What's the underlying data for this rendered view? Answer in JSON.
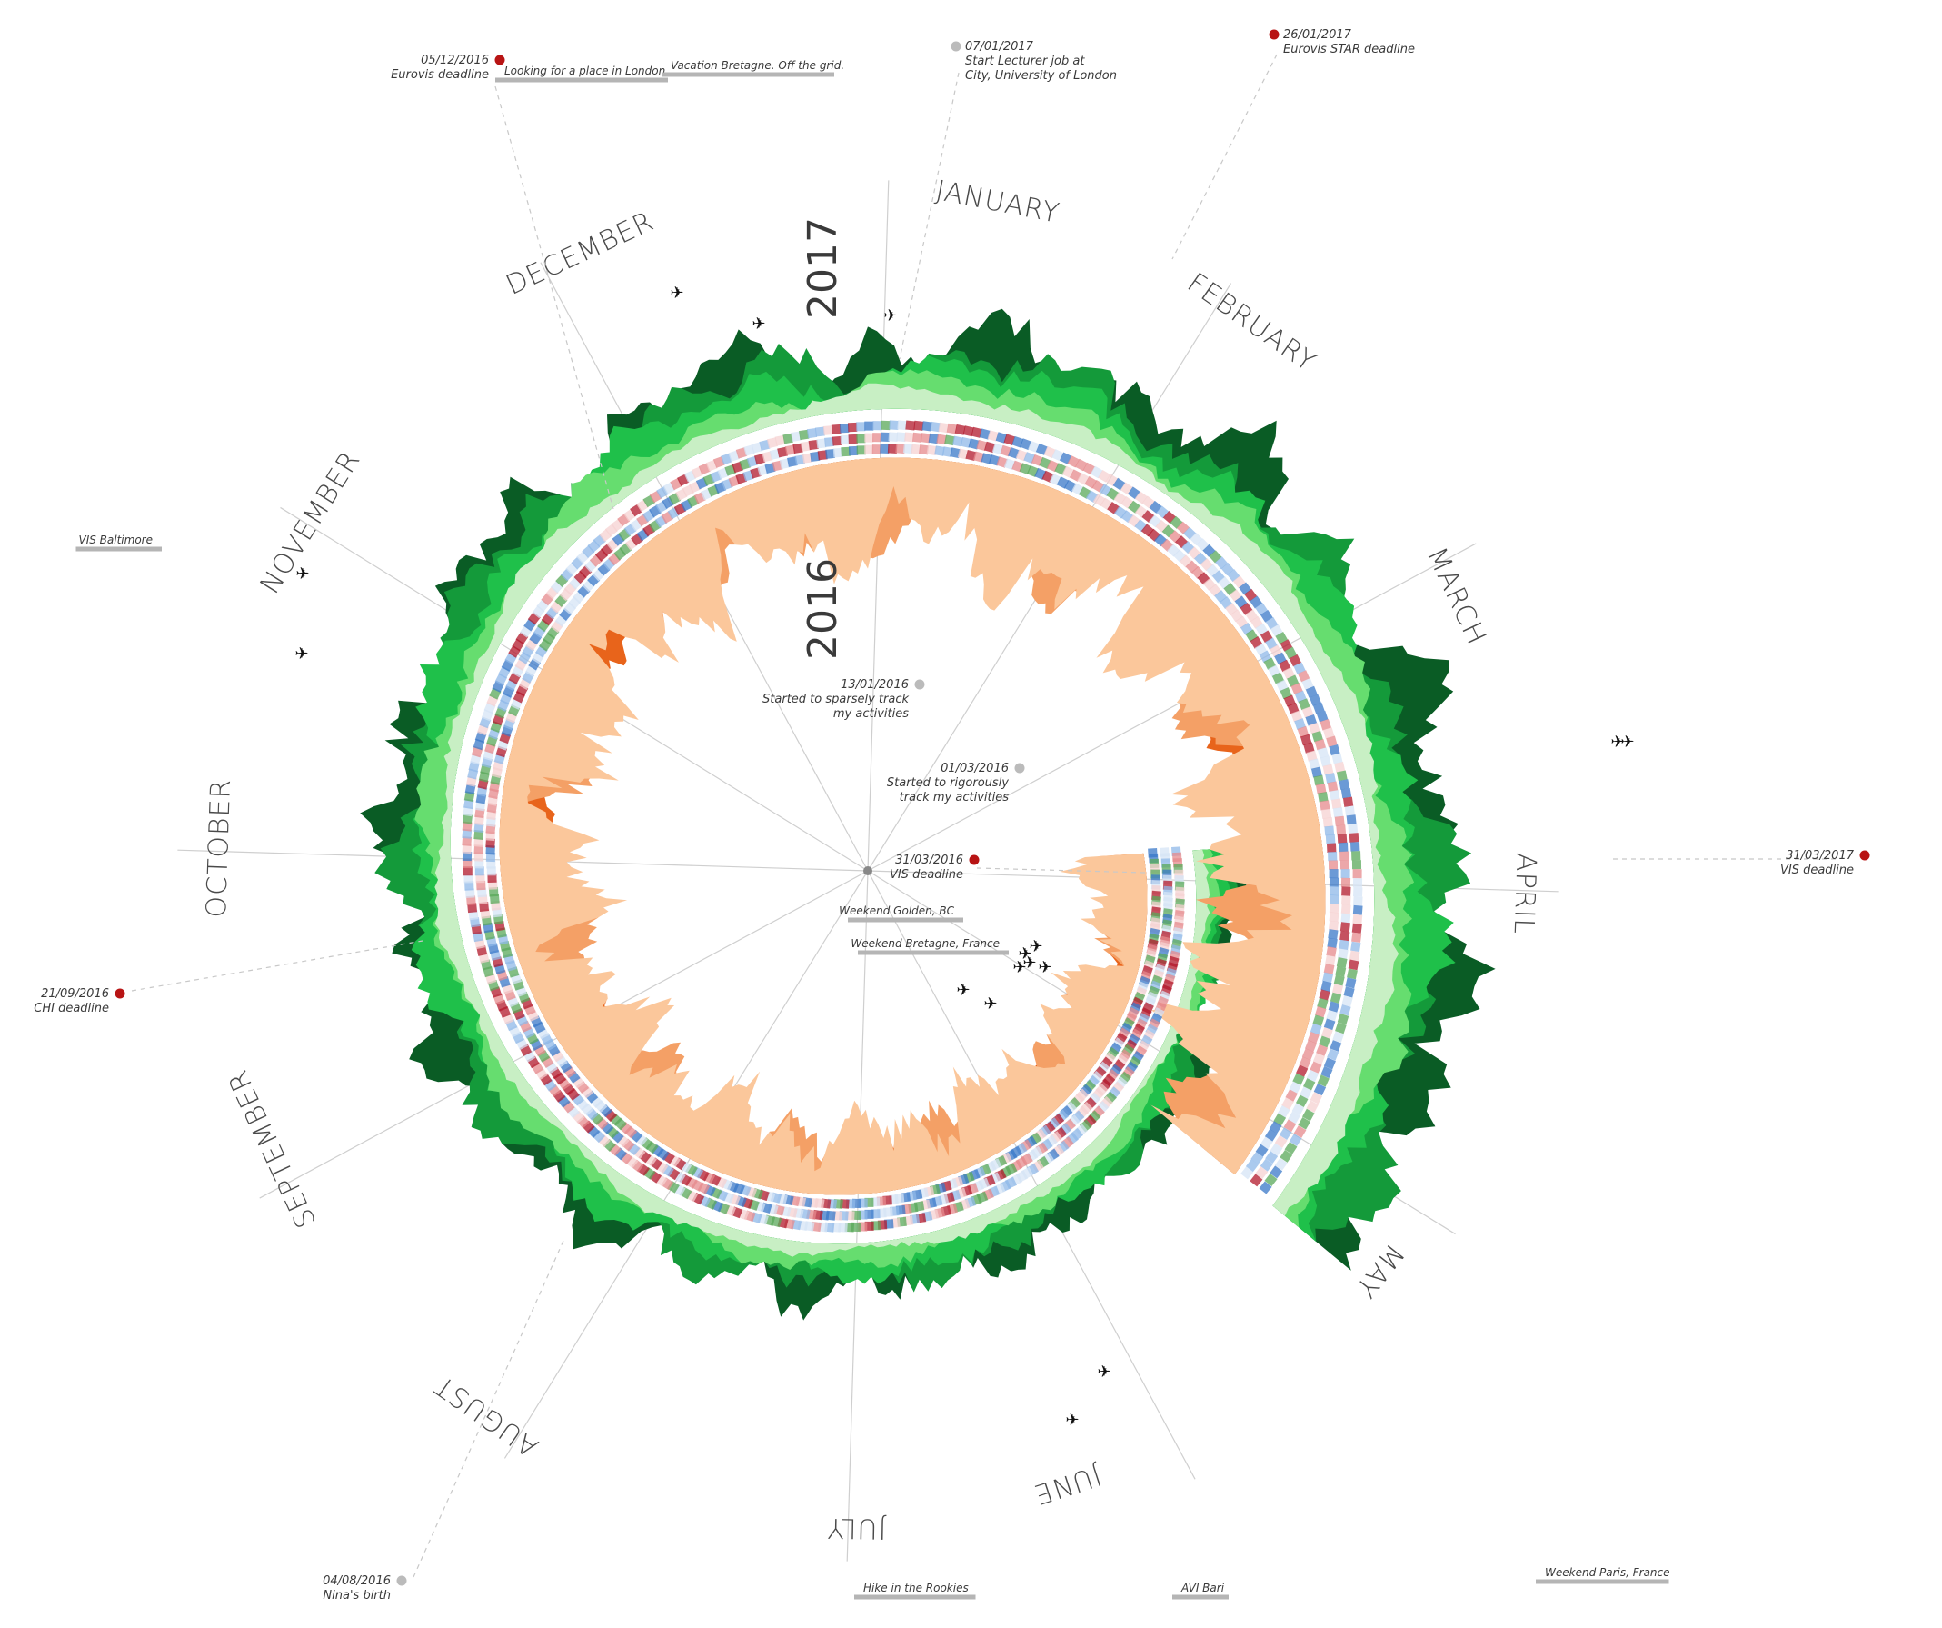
{
  "chart_data": {
    "type": "radial-area",
    "title": "",
    "years": [
      "2016",
      "2017"
    ],
    "months": [
      "JANUARY",
      "FEBRUARY",
      "MARCH",
      "APRIL",
      "MAY",
      "JUNE",
      "JULY",
      "AUGUST",
      "SEPTEMBER",
      "OCTOBER",
      "NOVEMBER",
      "DECEMBER"
    ],
    "layers": [
      {
        "name": "outer",
        "colors": [
          "#0a5c25",
          "#149a3a",
          "#1fc04a",
          "#66dd6f",
          "#c8efc4"
        ]
      },
      {
        "name": "inner",
        "colors": [
          "#7a2a06",
          "#e8641b",
          "#f4a066",
          "#fbc79b"
        ]
      }
    ],
    "heatmap_colors": [
      "#b2182b",
      "#e6898c",
      "#f6d2d2",
      "#d6e4f6",
      "#8fb8e8",
      "#3a78c8",
      "#5aa85a"
    ],
    "point_events": [
      {
        "date": "05/12/2016",
        "title": "Eurovis deadline",
        "kind": "deadline",
        "color": "#b81414"
      },
      {
        "date": "07/01/2017",
        "title": "Start Lecturer job at City, University of London",
        "kind": "life",
        "color": "#bbbbbb"
      },
      {
        "date": "26/01/2017",
        "title": "Eurovis STAR deadline",
        "kind": "deadline",
        "color": "#b81414"
      },
      {
        "date": "31/03/2017",
        "title": "VIS deadline",
        "kind": "deadline",
        "color": "#b81414"
      },
      {
        "date": "21/09/2016",
        "title": "CHI deadline",
        "kind": "deadline",
        "color": "#b81414"
      },
      {
        "date": "04/08/2016",
        "title": "Nina's birth",
        "kind": "life",
        "color": "#bbbbbb"
      },
      {
        "date": "13/01/2016",
        "title": "Started to sparsely track my activities",
        "kind": "life",
        "color": "#bbbbbb"
      },
      {
        "date": "01/03/2016",
        "title": "Started to rigorously track my activities",
        "kind": "life",
        "color": "#bbbbbb"
      },
      {
        "date": "31/03/2016",
        "title": "VIS deadline",
        "kind": "deadline",
        "color": "#b81414"
      }
    ],
    "period_events": [
      "Looking for a place in London",
      "Vacation Bretagne. Off the grid.",
      "VIS Baltimore",
      "Weekend Golden, BC",
      "Weekend Bretagne, France",
      "Hike in the Rookies",
      "AVI Bari",
      "Weekend Paris, France"
    ],
    "flights": 16,
    "grid": false,
    "legend": "none"
  }
}
